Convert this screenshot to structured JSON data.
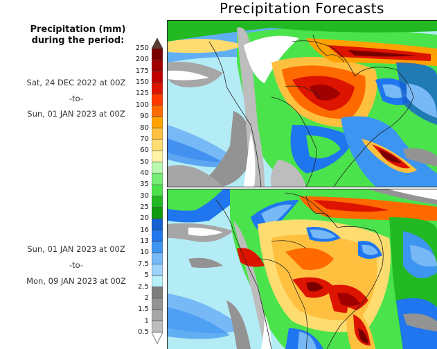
{
  "title": "Precipitation Forecasts",
  "legend": {
    "heading_line1": "Precipitation (mm)",
    "heading_line2": "during the period:",
    "levels": [
      "250",
      "200",
      "175",
      "150",
      "125",
      "100",
      "90",
      "80",
      "70",
      "60",
      "50",
      "40",
      "35",
      "30",
      "25",
      "20",
      "16",
      "13",
      "10",
      "7.5",
      "5",
      "2.5",
      "2",
      "1.5",
      "1",
      "0.5"
    ],
    "colors": [
      "#5a3a34",
      "#7a0000",
      "#a00000",
      "#c00000",
      "#dd1400",
      "#ff3800",
      "#ff6a00",
      "#ffa200",
      "#ffc040",
      "#ffdc70",
      "#fff3a6",
      "#baf9b0",
      "#75ee73",
      "#4be34b",
      "#22b922",
      "#0e9c0e",
      "#1560d0",
      "#1f76ee",
      "#3d95f2",
      "#77b8f6",
      "#9dd2fa",
      "#b6f0f8",
      "#7e7e7e",
      "#939393",
      "#a6a6a6",
      "#bdbdbd",
      "#ffffff"
    ]
  },
  "periods": [
    {
      "start": "Sat, 24 DEC 2022 at 00Z",
      "separator": "-to-",
      "end": "Sun, 01 JAN 2023 at 00Z"
    },
    {
      "start": "Sun, 01 JAN 2023 at 00Z",
      "separator": "-to-",
      "end": "Mon, 09 JAN 2023 at 00Z"
    }
  ],
  "maps": [
    {
      "name": "forecast-map-period-1"
    },
    {
      "name": "forecast-map-period-2"
    }
  ]
}
